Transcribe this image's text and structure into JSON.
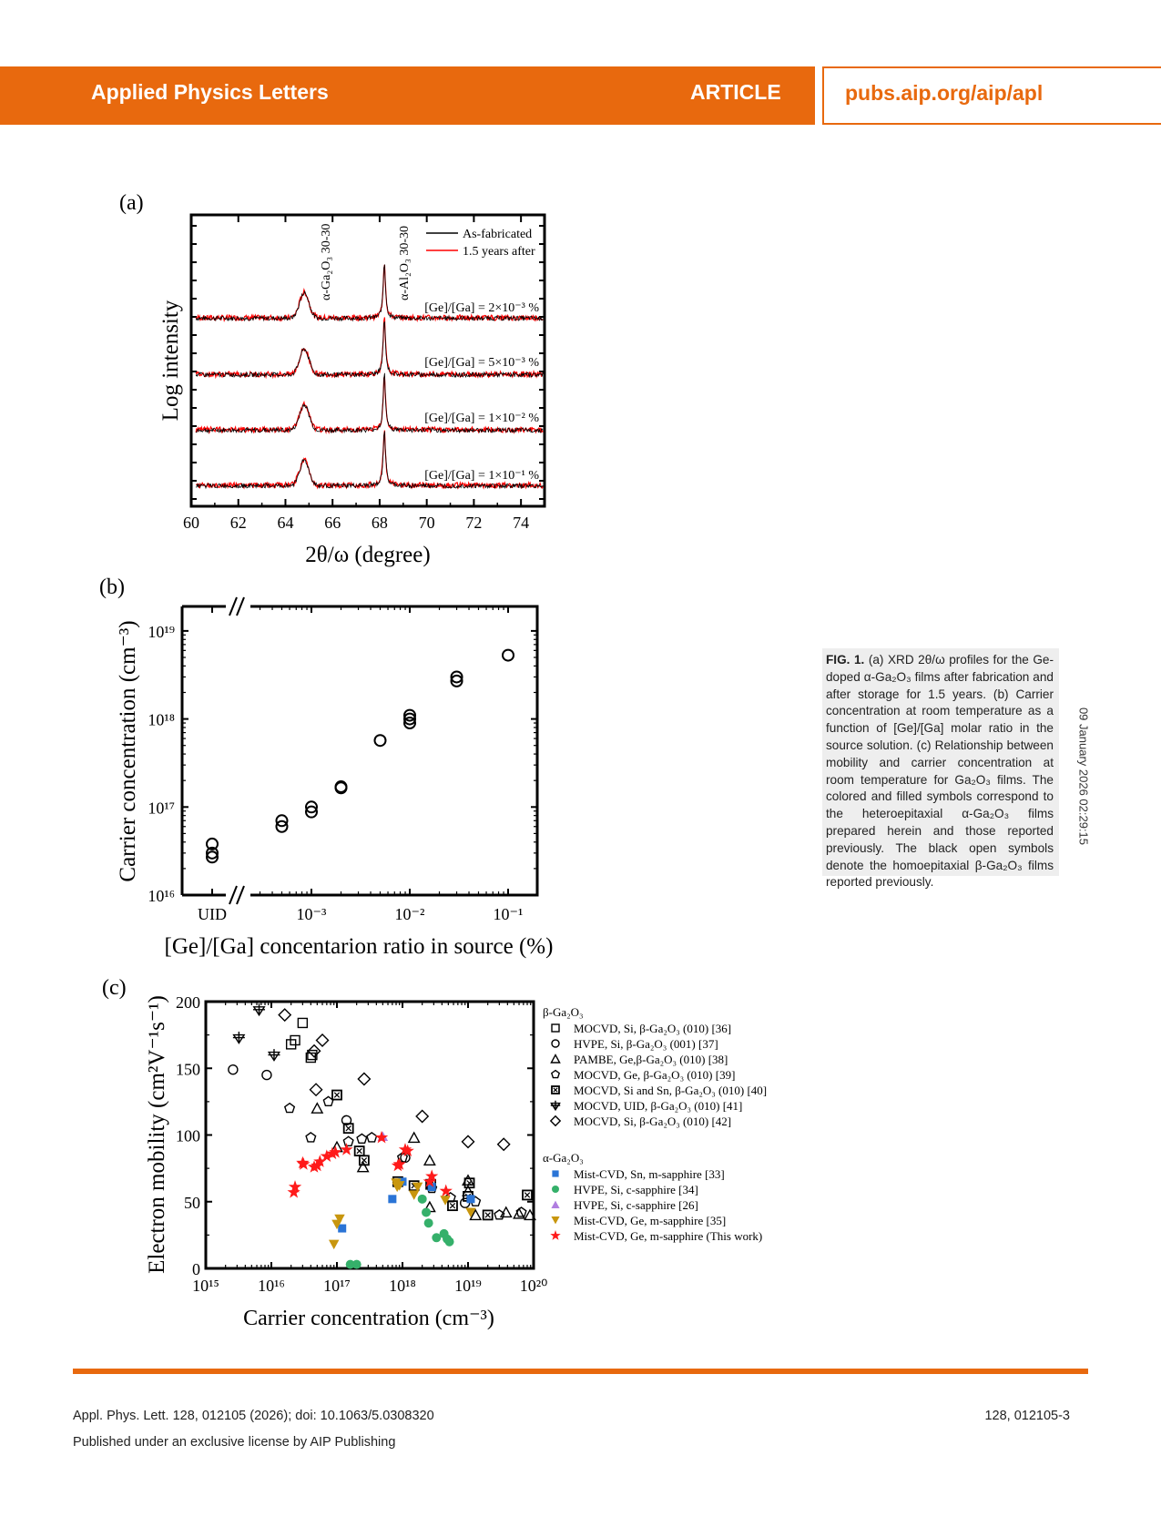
{
  "header": {
    "journal": "Applied Physics Letters",
    "section": "ARTICLE",
    "url": "pubs.aip.org/aip/apl",
    "accent_color": "#e8690e"
  },
  "caption": {
    "label": "FIG. 1.",
    "text": " (a) XRD 2θ/ω profiles for the Ge-doped α-Ga₂O₃ films after fabrication and after storage for 1.5 years. (b) Carrier concentration at room temperature as a function of [Ge]/[Ga] molar ratio in the source solution. (c) Relationship between mobility and carrier concentration at room temperature for Ga₂O₃ films. The colored and filled symbols correspond to the heteroepitaxial α-Ga₂O₃ films prepared herein and those reported previously. The black open symbols denote the homoepitaxial β-Ga₂O₃ films reported previously."
  },
  "side_stamp": "09 January 2026 02:29:15",
  "footer": {
    "citation": "Appl. Phys. Lett. 128, 012105 (2026); doi: 10.1063/5.0308320",
    "license": "Published under an exclusive license by AIP Publishing",
    "page": "128, 012105-3"
  },
  "chart_data": [
    {
      "panel": "(a)",
      "type": "line",
      "xlabel": "2θ/ω (degree)",
      "ylabel": "Log intensity",
      "xlim": [
        60,
        75
      ],
      "xticks": [
        60,
        62,
        64,
        66,
        68,
        70,
        72,
        74
      ],
      "legend": [
        "As-fabricated",
        "1.5 years after"
      ],
      "legend_position": "top-right",
      "series_colors": {
        "As-fabricated": "#000000",
        "1.5 years after": "#ff0000"
      },
      "peak_annotations": [
        {
          "label": "α-Ga₂O₃ 30-30",
          "x": 64.8
        },
        {
          "label": "α-Al₂O₃ 30-30",
          "x": 68.2
        }
      ],
      "traces": [
        {
          "label": "[Ge]/[Ga] = 2×10⁻³ %"
        },
        {
          "label": "[Ge]/[Ga] = 5×10⁻³ %"
        },
        {
          "label": "[Ge]/[Ga] = 1×10⁻² %"
        },
        {
          "label": "[Ge]/[Ga] = 1×10⁻¹ %"
        }
      ]
    },
    {
      "panel": "(b)",
      "type": "scatter",
      "xlabel": "[Ge]/[Ga] concentarion ratio in source (%)",
      "ylabel": "Carrier concentration (cm⁻³)",
      "xscale": "log",
      "yscale": "log",
      "xticks": [
        "UID",
        "10⁻³",
        "10⁻²",
        "10⁻¹"
      ],
      "yticks": [
        "10¹⁶",
        "10¹⁷",
        "10¹⁸",
        "10¹⁹"
      ],
      "ylim": [
        1e+16,
        2e+19
      ],
      "points": [
        {
          "x": "UID",
          "y": 3.8e+16
        },
        {
          "x": "UID",
          "y": 3e+16
        },
        {
          "x": "UID",
          "y": 2.7e+16
        },
        {
          "x": 0.0005,
          "y": 7e+16
        },
        {
          "x": 0.0005,
          "y": 6e+16
        },
        {
          "x": 0.001,
          "y": 1e+17
        },
        {
          "x": 0.001,
          "y": 8.8e+16
        },
        {
          "x": 0.002,
          "y": 1.7e+17
        },
        {
          "x": 0.002,
          "y": 1.65e+17
        },
        {
          "x": 0.005,
          "y": 5.7e+17
        },
        {
          "x": 0.01,
          "y": 1.1e+18
        },
        {
          "x": 0.01,
          "y": 1e+18
        },
        {
          "x": 0.01,
          "y": 9e+17
        },
        {
          "x": 0.03,
          "y": 3e+18
        },
        {
          "x": 0.03,
          "y": 2.7e+18
        },
        {
          "x": 0.1,
          "y": 5.3e+18
        }
      ]
    },
    {
      "panel": "(c)",
      "type": "scatter",
      "xlabel": "Carrier concentration (cm⁻³)",
      "ylabel": "Electron mobility (cm²V⁻¹s⁻¹)",
      "xscale": "log",
      "xlim": [
        1000000000000000.0,
        1e+20
      ],
      "ylim": [
        0,
        200
      ],
      "xticks": [
        "10¹⁵",
        "10¹⁶",
        "10¹⁷",
        "10¹⁸",
        "10¹⁹",
        "10²⁰"
      ],
      "yticks": [
        0,
        50,
        100,
        150,
        200
      ],
      "legend_groups": [
        {
          "title": "β-Ga₂O₃",
          "items": [
            {
              "marker": "open-square",
              "label": "MOCVD, Si, β-Ga₂O₃ (010) [36]"
            },
            {
              "marker": "open-circle",
              "label": "HVPE, Si, β-Ga₂O₃ (001) [37]"
            },
            {
              "marker": "open-triangle",
              "label": "PAMBE, Ge,β-Ga₂O₃ (010) [38]"
            },
            {
              "marker": "open-pentagon",
              "label": "MOCVD, Ge, β-Ga₂O₃ (010) [39]"
            },
            {
              "marker": "crossed-square",
              "label": "MOCVD, Si and Sn, β-Ga₂O₃ (010) [40]"
            },
            {
              "marker": "crossed-down-triangle",
              "label": "MOCVD, UID, β-Ga₂O₃ (010) [41]"
            },
            {
              "marker": "open-diamond",
              "label": "MOCVD, Si, β-Ga₂O₃ (010) [42]"
            }
          ]
        },
        {
          "title": "α-Ga₂O₃",
          "items": [
            {
              "marker": "blue-square",
              "color": "#2a74d6",
              "label": "Mist-CVD, Sn, m-sapphire [33]"
            },
            {
              "marker": "green-circle",
              "color": "#35b06a",
              "label": "HVPE, Si, c-sapphire [34]"
            },
            {
              "marker": "purple-triangle",
              "color": "#b07ee0",
              "label": "HVPE, Si, c-sapphire [26]"
            },
            {
              "marker": "gold-down-triangle",
              "color": "#c8960e",
              "label": "Mist-CVD, Ge, m-sapphire [35]"
            },
            {
              "marker": "red-star",
              "color": "#ff1a1a",
              "label": "Mist-CVD, Ge, m-sapphire (This work)"
            }
          ]
        }
      ],
      "series": [
        {
          "name": "MOCVD, Si [36]",
          "marker": "open-square",
          "points": [
            [
              2e+16,
              168
            ],
            [
              2.3e+16,
              171
            ],
            [
              3e+16,
              184
            ],
            [
              4e+16,
              158
            ],
            [
              4.2e+16,
              160
            ]
          ]
        },
        {
          "name": "HVPE, Si [37]",
          "marker": "open-circle",
          "points": [
            [
              2600000000000000.0,
              149
            ],
            [
              8500000000000000.0,
              145
            ],
            [
              1.4e+17,
              111
            ],
            [
              1.1e+18,
              83
            ],
            [
              9e+18,
              49
            ]
          ]
        },
        {
          "name": "PAMBE, Ge [38]",
          "marker": "open-triangle",
          "points": [
            [
              5e+16,
              120
            ],
            [
              1e+17,
              91
            ],
            [
              2.5e+17,
              76
            ],
            [
              1.5e+18,
              98
            ],
            [
              2.6e+18,
              81
            ],
            [
              2.6e+18,
              46
            ],
            [
              1e+19,
              66
            ],
            [
              1e+19,
              58
            ],
            [
              1.3e+19,
              40
            ],
            [
              3.8e+19,
              42
            ],
            [
              6e+19,
              41
            ],
            [
              8.8e+19,
              40
            ]
          ]
        },
        {
          "name": "MOCVD, Ge [39]",
          "marker": "open-pentagon",
          "points": [
            [
              1.9e+16,
              120
            ],
            [
              4e+16,
              98
            ],
            [
              7.4e+16,
              125
            ],
            [
              1.5e+17,
              95
            ],
            [
              2.4e+17,
              97
            ],
            [
              3.4e+17,
              98
            ],
            [
              1e+18,
              83
            ],
            [
              2.8e+18,
              60
            ],
            [
              5.4e+18,
              53
            ],
            [
              1.3e+19,
              50
            ],
            [
              3e+19,
              40
            ],
            [
              6.5e+19,
              42
            ]
          ]
        },
        {
          "name": "MOCVD, Si and Sn [40]",
          "marker": "crossed-square",
          "points": [
            [
              1e+17,
              130
            ],
            [
              1.5e+17,
              105
            ],
            [
              2.2e+17,
              88
            ],
            [
              2.6e+17,
              81
            ],
            [
              8.5e+17,
              65
            ],
            [
              1.5e+18,
              62
            ],
            [
              2.7e+18,
              63
            ],
            [
              5.8e+18,
              47
            ],
            [
              1e+19,
              54
            ],
            [
              1.05e+19,
              64
            ],
            [
              2e+19,
              40
            ],
            [
              8e+19,
              55
            ]
          ]
        },
        {
          "name": "MOCVD, UID [41]",
          "marker": "crossed-down-triangle",
          "points": [
            [
              3200000000000000.0,
              173
            ],
            [
              6500000000000000.0,
              194
            ],
            [
              1.1e+16,
              160
            ]
          ]
        },
        {
          "name": "MOCVD, Si [42]",
          "marker": "open-diamond",
          "points": [
            [
              1.6e+16,
              190
            ],
            [
              4.5e+16,
              163
            ],
            [
              4.8e+16,
              134
            ],
            [
              6e+16,
              171
            ],
            [
              2.6e+17,
              142
            ],
            [
              2e+18,
              114
            ],
            [
              1e+19,
              95
            ],
            [
              3.5e+19,
              93
            ]
          ]
        },
        {
          "name": "Mist-CVD, Sn [33]",
          "marker": "blue-square",
          "points": [
            [
              1.2e+17,
              30
            ],
            [
              7e+17,
              52
            ],
            [
              1e+18,
              65
            ],
            [
              2.8e+18,
              61
            ],
            [
              1.1e+19,
              52
            ]
          ]
        },
        {
          "name": "HVPE, Si [34]",
          "marker": "green-circle",
          "points": [
            [
              1.6e+17,
              3
            ],
            [
              2e+17,
              3
            ],
            [
              2e+18,
              52
            ],
            [
              2.3e+18,
              42
            ],
            [
              2.5e+18,
              34
            ],
            [
              3.3e+18,
              23
            ],
            [
              4.3e+18,
              26
            ],
            [
              4.8e+18,
              22
            ],
            [
              5.2e+18,
              20
            ]
          ]
        },
        {
          "name": "HVPE, Si [26]",
          "marker": "purple-triangle",
          "points": [
            [
              5e+17,
              99
            ]
          ]
        },
        {
          "name": "Mist-CVD, Ge [35]",
          "marker": "gold-down-triangle",
          "points": [
            [
              9e+16,
              18
            ],
            [
              1e+17,
              33
            ],
            [
              1.1e+17,
              37
            ],
            [
              8e+17,
              64
            ],
            [
              8.3e+17,
              61
            ],
            [
              9e+17,
              62
            ],
            [
              1.5e+18,
              55
            ],
            [
              1.7e+18,
              61
            ],
            [
              4.5e+18,
              51
            ],
            [
              1.1e+19,
              42
            ]
          ]
        },
        {
          "name": "Mist-CVD, Ge (This work)",
          "marker": "red-star",
          "points": [
            [
              2.2e+16,
              57
            ],
            [
              2.3e+16,
              61
            ],
            [
              3e+16,
              79
            ],
            [
              3.1e+16,
              78
            ],
            [
              4.5e+16,
              76
            ],
            [
              5e+16,
              77
            ],
            [
              5.5e+16,
              80
            ],
            [
              7e+16,
              84
            ],
            [
              8.5e+16,
              86
            ],
            [
              9.5e+16,
              87
            ],
            [
              1.4e+17,
              89
            ],
            [
              4.8e+17,
              98
            ],
            [
              8.5e+17,
              77
            ],
            [
              9e+17,
              78
            ],
            [
              1.1e+18,
              89
            ],
            [
              1.2e+18,
              88
            ],
            [
              2.6e+18,
              65
            ],
            [
              2.8e+18,
              69
            ],
            [
              4.6e+18,
              58
            ]
          ]
        }
      ]
    }
  ]
}
